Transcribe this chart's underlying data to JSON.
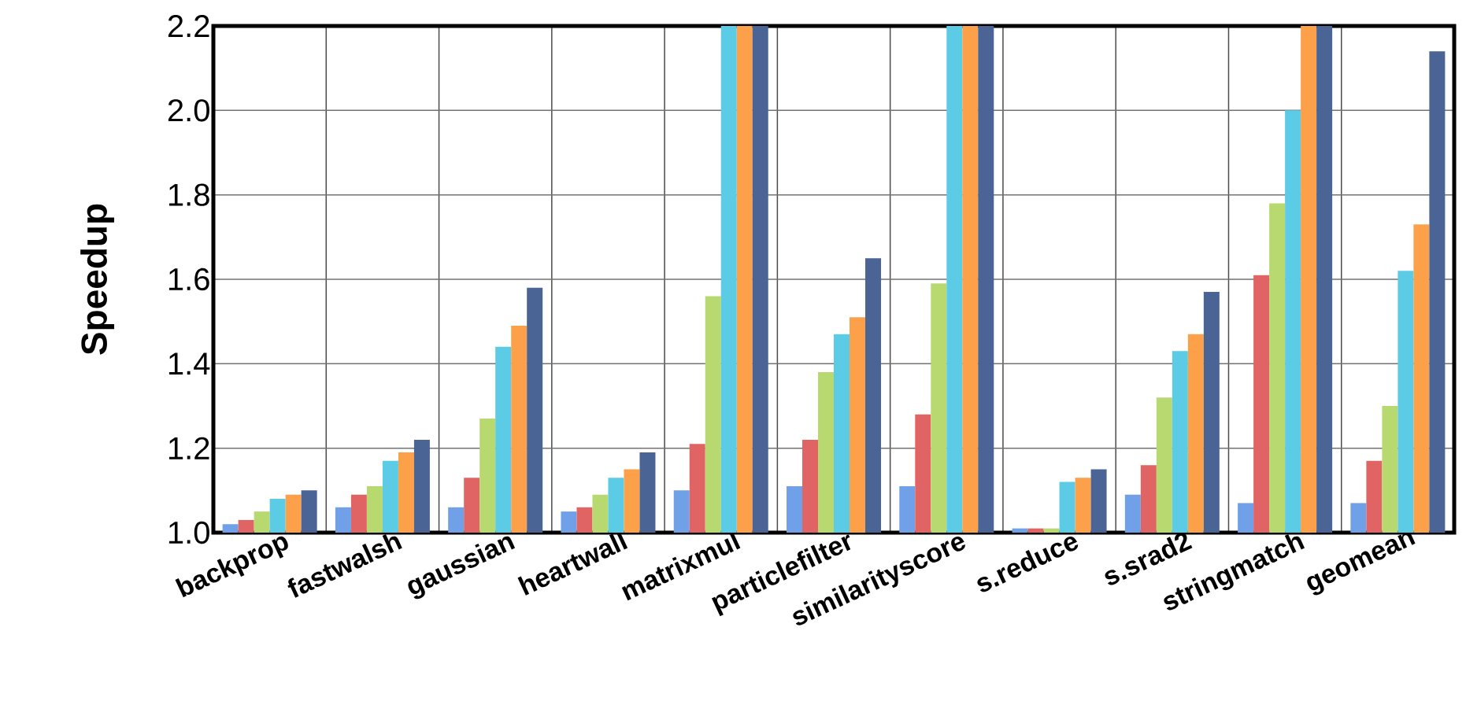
{
  "chart_data": {
    "type": "bar",
    "ylabel": "Speedup",
    "categories": [
      "backprop",
      "fastwalsh",
      "gaussian",
      "heartwall",
      "matrixmul",
      "particlefilter",
      "similarityscore",
      "s.reduce",
      "s.srad2",
      "stringmatch",
      "geomean"
    ],
    "series": [
      {
        "color": "#6fa0e8",
        "values": [
          1.02,
          1.06,
          1.06,
          1.05,
          1.1,
          1.11,
          1.11,
          1.01,
          1.09,
          1.07,
          1.07
        ]
      },
      {
        "color": "#e06464",
        "values": [
          1.03,
          1.09,
          1.13,
          1.06,
          1.21,
          1.22,
          1.28,
          1.01,
          1.16,
          1.61,
          1.17
        ]
      },
      {
        "color": "#b8d870",
        "values": [
          1.05,
          1.11,
          1.27,
          1.09,
          1.56,
          1.38,
          1.59,
          1.01,
          1.32,
          1.78,
          1.3
        ]
      },
      {
        "color": "#5ccbe6",
        "values": [
          1.08,
          1.17,
          1.44,
          1.13,
          2.2,
          1.47,
          2.2,
          1.12,
          1.43,
          2.0,
          1.62
        ]
      },
      {
        "color": "#fca04a",
        "values": [
          1.09,
          1.19,
          1.49,
          1.15,
          2.2,
          1.51,
          2.2,
          1.13,
          1.47,
          2.2,
          1.73
        ]
      },
      {
        "color": "#4a6496",
        "values": [
          1.1,
          1.22,
          1.58,
          1.19,
          2.2,
          1.65,
          2.2,
          1.15,
          1.57,
          2.2,
          2.14
        ]
      }
    ],
    "ylim": [
      1.0,
      2.2
    ],
    "yticks": [
      {
        "value": 1.0,
        "label": "1.0"
      },
      1.2,
      1.4,
      1.6,
      1.8,
      {
        "value": 2.0,
        "label": "2.0"
      },
      2.2
    ],
    "grid": true
  }
}
